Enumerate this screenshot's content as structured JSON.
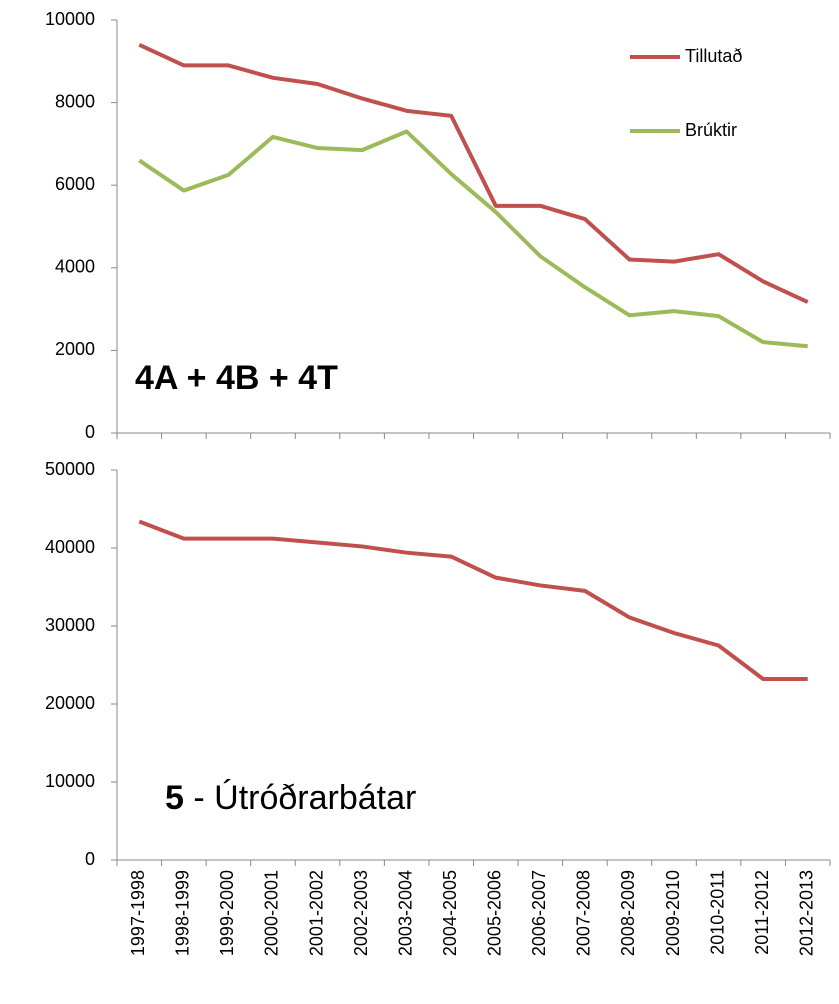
{
  "chart_data": [
    {
      "type": "line",
      "ylim": [
        0,
        10000
      ],
      "yticks": [
        0,
        2000,
        4000,
        6000,
        8000,
        10000
      ],
      "series": [
        {
          "name": "Tillutað",
          "color": "#c0504d",
          "values": [
            9400,
            8900,
            8900,
            8600,
            8450,
            8100,
            7800,
            7680,
            5500,
            5500,
            5180,
            4200,
            4150,
            4330,
            3670,
            3170
          ]
        },
        {
          "name": "Brúktir",
          "color": "#9bbb59",
          "values": [
            6600,
            5870,
            6250,
            7170,
            6900,
            6850,
            7300,
            6270,
            5350,
            4280,
            3530,
            2850,
            2950,
            2830,
            2200,
            2100
          ]
        }
      ],
      "legend": "upper right",
      "annotation": {
        "bold": "4A + 4B + 4T"
      }
    },
    {
      "type": "line",
      "categories": [
        "1997-1998",
        "1998-1999",
        "1999-2000",
        "2000-2001",
        "2001-2002",
        "2002-2003",
        "2003-2004",
        "2004-2005",
        "2005-2006",
        "2006-2007",
        "2007-2008",
        "2008-2009",
        "2009-2010",
        "2010-2011",
        "2011-2012",
        "2012-2013"
      ],
      "ylim": [
        0,
        50000
      ],
      "yticks": [
        0,
        10000,
        20000,
        30000,
        40000,
        50000
      ],
      "series": [
        {
          "color": "#c0504d",
          "values": [
            43400,
            41200,
            41200,
            41200,
            40700,
            40200,
            39400,
            38900,
            36200,
            35200,
            34500,
            31100,
            29100,
            27500,
            23200,
            23200
          ]
        }
      ],
      "annotation": {
        "bold": "5",
        "text": " - Útróðrarbátar"
      }
    }
  ]
}
